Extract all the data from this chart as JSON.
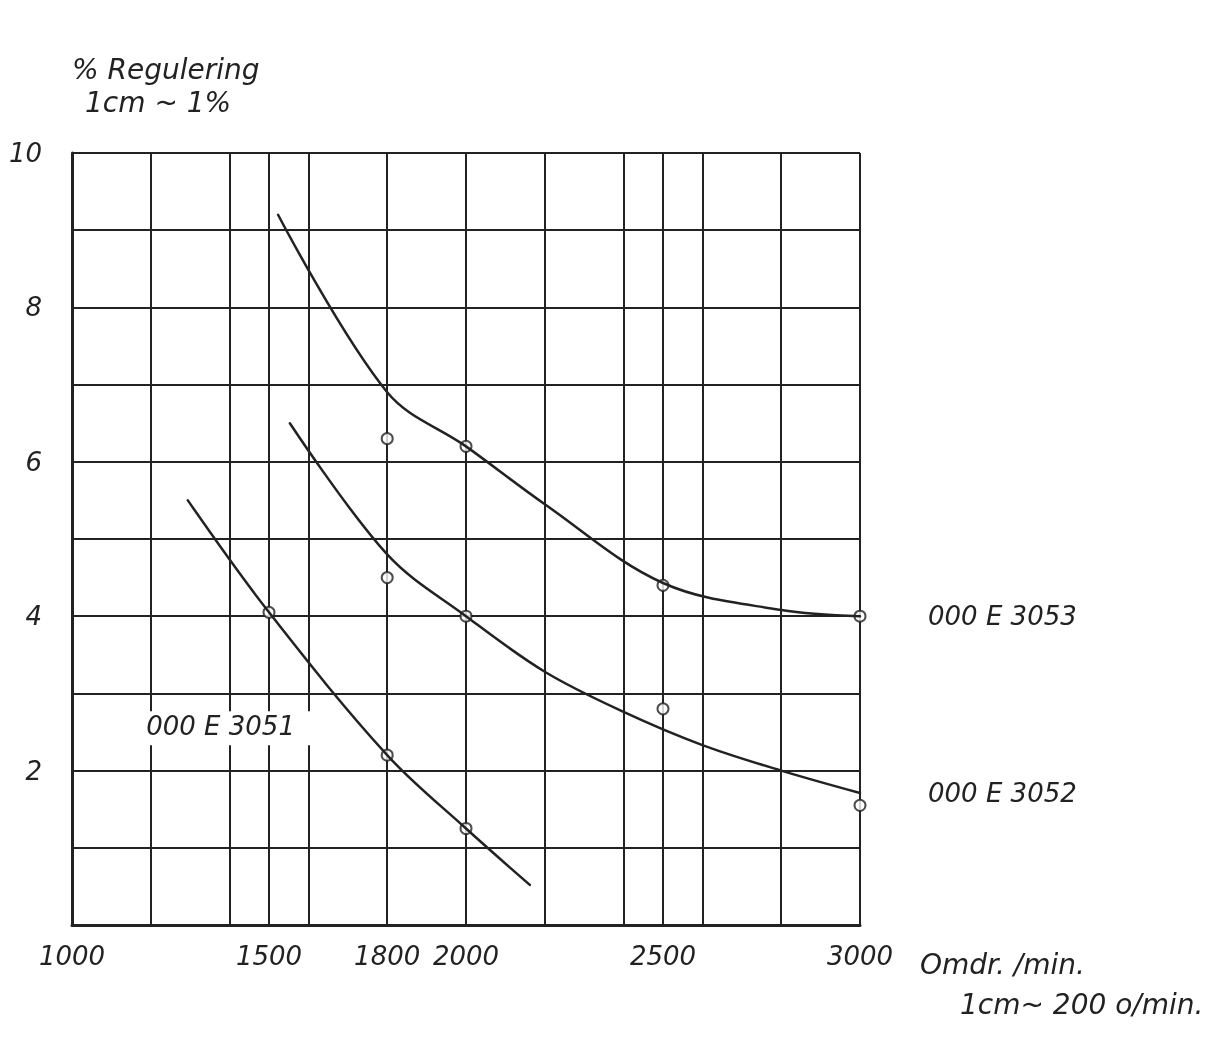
{
  "chart_data": {
    "type": "line",
    "xlabel": "Omdr. /min.",
    "ylabel": "% Regulering",
    "annotations": [
      "1cm ~ 1%",
      "1cm~ 200 o/min."
    ],
    "xlim": [
      1000,
      3000
    ],
    "xticks": [
      1000,
      {
        "value": 1200,
        "label": null
      },
      {
        "value": 1400,
        "label": null
      },
      1500,
      {
        "value": 1600,
        "label": null
      },
      1800,
      2000,
      {
        "value": 2200,
        "label": null
      },
      {
        "value": 2400,
        "label": null
      },
      2500,
      {
        "value": 2600,
        "label": null
      },
      {
        "value": 2800,
        "label": null
      },
      3000
    ],
    "ylim": [
      0,
      10
    ],
    "yticks": [
      {
        "value": 0,
        "label": null
      },
      {
        "value": 1,
        "label": null
      },
      2,
      {
        "value": 3,
        "label": null
      },
      4,
      {
        "value": 5,
        "label": null
      },
      6,
      {
        "value": 7,
        "label": null
      },
      8,
      {
        "value": 9,
        "label": null
      },
      10
    ],
    "grid": true,
    "legend": false,
    "line_style": "solid",
    "series": [
      {
        "name": "000 E 3053",
        "marker": "none",
        "color": "#222222",
        "x": [
          1523,
          1800,
          2000,
          2200,
          2500,
          2800,
          3000
        ],
        "values": [
          9.2,
          6.9,
          6.2,
          5.45,
          4.43,
          4.08,
          4.0
        ]
      },
      {
        "name": "000 E 3052",
        "marker": "none",
        "color": "#222222",
        "x": [
          1553,
          1800,
          2000,
          2200,
          2400,
          2600,
          2800,
          3000
        ],
        "values": [
          6.5,
          4.8,
          4.0,
          3.28,
          2.76,
          2.33,
          2.0,
          1.71
        ]
      },
      {
        "name": "000 E 3051",
        "marker": "none",
        "color": "#222222",
        "x": [
          1294,
          1500,
          1800,
          2000,
          2162
        ],
        "values": [
          5.5,
          4.05,
          2.2,
          1.25,
          0.52
        ]
      },
      {
        "type": "scatter",
        "marker": "circle",
        "color": "#222222",
        "x": [
          1800,
          2000,
          2500,
          3000
        ],
        "values": [
          6.3,
          6.2,
          4.4,
          4.0
        ]
      },
      {
        "type": "scatter",
        "marker": "circle",
        "color": "#222222",
        "x": [
          1800,
          2000,
          2500,
          3000
        ],
        "values": [
          4.5,
          4.0,
          2.8,
          1.55
        ]
      },
      {
        "type": "scatter",
        "marker": "circle",
        "color": "#222222",
        "x": [
          1500,
          1800,
          2000
        ],
        "values": [
          4.05,
          2.2,
          1.25
        ]
      }
    ]
  }
}
